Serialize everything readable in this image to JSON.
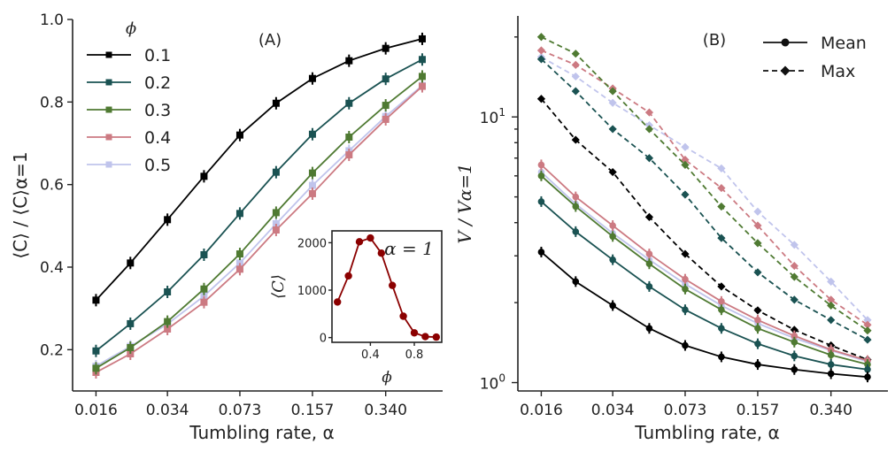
{
  "chart_data": [
    {
      "panel": "(A)",
      "type": "line",
      "xlabel": "Tumbling rate, α",
      "ylabel": "⟨C⟩ / ⟨C⟩α=1",
      "x_scale": "log",
      "x_tick_labels": [
        "0.016",
        "0.034",
        "0.073",
        "0.157",
        "0.340"
      ],
      "x": [
        0.016,
        0.023,
        0.034,
        0.05,
        0.073,
        0.107,
        0.157,
        0.231,
        0.34,
        0.5
      ],
      "ylim": [
        0.1,
        1.0
      ],
      "y_ticks": [
        "0.2",
        "0.4",
        "0.6",
        "0.8",
        "1.0"
      ],
      "legend_title": "ϕ",
      "legend_position": "top-left",
      "marker": "square",
      "series": [
        {
          "name": "0.1",
          "color": "#000000",
          "values": [
            0.32,
            0.41,
            0.515,
            0.62,
            0.72,
            0.797,
            0.857,
            0.9,
            0.93,
            0.953
          ]
        },
        {
          "name": "0.2",
          "color": "#1a5252",
          "values": [
            0.197,
            0.263,
            0.34,
            0.43,
            0.53,
            0.63,
            0.722,
            0.797,
            0.856,
            0.903
          ]
        },
        {
          "name": "0.3",
          "color": "#4f7a32",
          "values": [
            0.155,
            0.205,
            0.268,
            0.347,
            0.432,
            0.532,
            0.628,
            0.715,
            0.792,
            0.862
          ]
        },
        {
          "name": "0.4",
          "color": "#cc7a82",
          "values": [
            0.145,
            0.19,
            0.25,
            0.315,
            0.395,
            0.49,
            0.578,
            0.672,
            0.758,
            0.838
          ]
        },
        {
          "name": "0.5",
          "color": "#c0c4ec",
          "values": [
            0.16,
            0.208,
            0.262,
            0.33,
            0.41,
            0.505,
            0.598,
            0.682,
            0.765,
            0.84
          ]
        }
      ],
      "inset": {
        "type": "line",
        "xlabel": "ϕ",
        "ylabel": "⟨C⟩",
        "annotation": "α = 1",
        "color": "#8b0000",
        "x_ticks": [
          "0.4",
          "0.8"
        ],
        "y_ticks": [
          "0",
          "1000",
          "2000"
        ],
        "xlim": [
          0.05,
          1.05
        ],
        "ylim": [
          -100,
          2250
        ],
        "x": [
          0.1,
          0.2,
          0.3,
          0.4,
          0.5,
          0.6,
          0.7,
          0.8,
          0.9,
          1.0
        ],
        "values": [
          750,
          1300,
          2020,
          2100,
          1780,
          1100,
          450,
          100,
          20,
          10
        ]
      }
    },
    {
      "panel": "(B)",
      "type": "line",
      "xlabel": "Tumbling rate, α",
      "ylabel": "V / Vα=1",
      "x_scale": "log",
      "y_scale": "log",
      "x_tick_labels": [
        "0.016",
        "0.034",
        "0.073",
        "0.157",
        "0.340"
      ],
      "x": [
        0.016,
        0.023,
        0.034,
        0.05,
        0.073,
        0.107,
        0.157,
        0.231,
        0.34,
        0.5
      ],
      "ylim": [
        0.93,
        24
      ],
      "y_ticks": [
        "10^0",
        "10^1"
      ],
      "legend_position": "top-right",
      "legend": [
        {
          "name": "Mean",
          "style": "solid",
          "marker": "circle"
        },
        {
          "name": "Max",
          "style": "dashed",
          "marker": "diamond"
        }
      ],
      "series": [
        {
          "phi": "0.1",
          "kind": "Mean",
          "color": "#000000",
          "values": [
            3.1,
            2.4,
            1.95,
            1.6,
            1.38,
            1.25,
            1.17,
            1.12,
            1.08,
            1.05
          ]
        },
        {
          "phi": "0.2",
          "kind": "Mean",
          "color": "#1a5252",
          "values": [
            4.8,
            3.7,
            2.9,
            2.3,
            1.88,
            1.6,
            1.4,
            1.26,
            1.17,
            1.12
          ]
        },
        {
          "phi": "0.3",
          "kind": "Mean",
          "color": "#4f7a32",
          "values": [
            6.0,
            4.6,
            3.55,
            2.8,
            2.25,
            1.88,
            1.6,
            1.42,
            1.27,
            1.17
          ]
        },
        {
          "phi": "0.4",
          "kind": "Mean",
          "color": "#cc7a82",
          "values": [
            6.6,
            5.0,
            3.9,
            3.05,
            2.45,
            2.02,
            1.72,
            1.5,
            1.33,
            1.21
          ]
        },
        {
          "phi": "0.5",
          "kind": "Mean",
          "color": "#c0c4ec",
          "values": [
            6.2,
            4.7,
            3.65,
            2.9,
            2.35,
            1.95,
            1.67,
            1.47,
            1.32,
            1.2
          ]
        },
        {
          "phi": "0.1",
          "kind": "Max",
          "color": "#000000",
          "values": [
            11.7,
            8.2,
            6.2,
            4.2,
            3.05,
            2.3,
            1.87,
            1.58,
            1.38,
            1.22
          ]
        },
        {
          "phi": "0.2",
          "kind": "Max",
          "color": "#1a5252",
          "values": [
            16.5,
            12.5,
            9.0,
            7.0,
            5.1,
            3.5,
            2.6,
            2.05,
            1.72,
            1.45
          ]
        },
        {
          "phi": "0.3",
          "kind": "Max",
          "color": "#4f7a32",
          "values": [
            20.0,
            17.3,
            12.5,
            9.0,
            6.6,
            4.6,
            3.35,
            2.5,
            1.95,
            1.57
          ]
        },
        {
          "phi": "0.4",
          "kind": "Max",
          "color": "#cc7a82",
          "values": [
            17.8,
            15.7,
            12.8,
            10.4,
            6.9,
            5.4,
            3.9,
            2.75,
            2.05,
            1.65
          ]
        },
        {
          "phi": "0.5",
          "kind": "Max",
          "color": "#c0c4ec",
          "values": [
            16.8,
            14.2,
            11.3,
            9.3,
            7.7,
            6.4,
            4.4,
            3.3,
            2.4,
            1.72
          ]
        }
      ]
    }
  ]
}
